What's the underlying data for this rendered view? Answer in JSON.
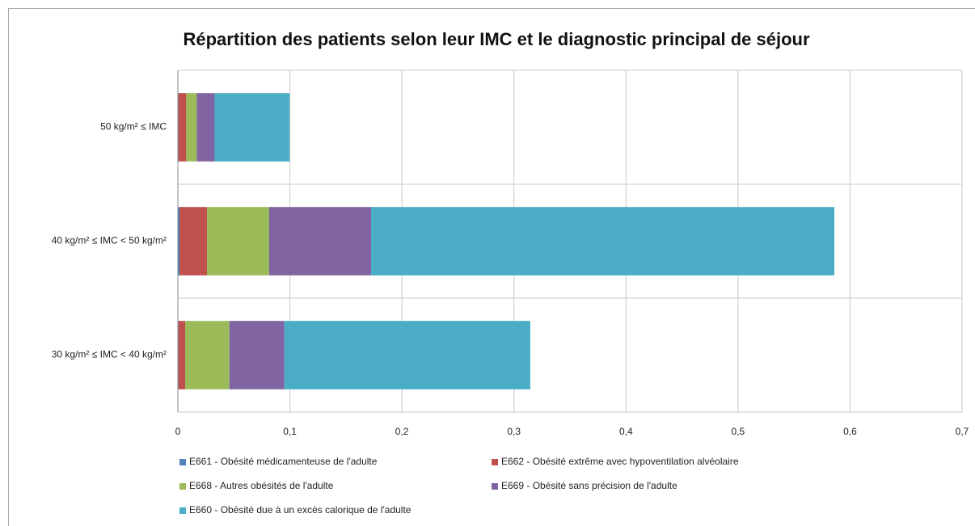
{
  "chart_data": {
    "type": "stacked-bar-horizontal",
    "title": "Répartition des patients selon leur IMC et le diagnostic principal de séjour",
    "categories": [
      "50 kg/m² ≤ IMC",
      "40 kg/m² ≤ IMC < 50 kg/m²",
      "30 kg/m² ≤ IMC < 40 kg/m²"
    ],
    "series": [
      {
        "name": "E661 - Obésité médicamenteuse de l'adulte",
        "color": "#4f81bd",
        "values": [
          0.0005,
          0.0015,
          0.0005
        ]
      },
      {
        "name": "E662 - Obésité extrême avec hypoventilation alvéolaire",
        "color": "#c0504d",
        "values": [
          0.007,
          0.0245,
          0.006
        ]
      },
      {
        "name": "E668 - Autres obésités de l'adulte",
        "color": "#9bbb59",
        "values": [
          0.0094,
          0.0555,
          0.0395
        ]
      },
      {
        "name": "E669 - Obésité sans précision de l'adulte",
        "color": "#8064a2",
        "values": [
          0.0159,
          0.091,
          0.049
        ]
      },
      {
        "name": "E660 - Obésité due à un excès calorique de l'adulte",
        "color": "#4bacc6",
        "values": [
          0.067,
          0.4135,
          0.2196
        ]
      }
    ],
    "xlim": [
      0,
      0.7
    ],
    "xticks": [
      0,
      {
        "value": 0.1,
        "label": "0,1"
      },
      {
        "value": 0.2,
        "label": "0,2"
      },
      {
        "value": 0.3,
        "label": "0,3"
      },
      {
        "value": 0.4,
        "label": "0,4"
      },
      {
        "value": 0.5,
        "label": "0,5"
      },
      {
        "value": 0.6,
        "label": "0,6"
      },
      {
        "value": 0.7,
        "label": "0,7"
      }
    ],
    "grid": true
  }
}
